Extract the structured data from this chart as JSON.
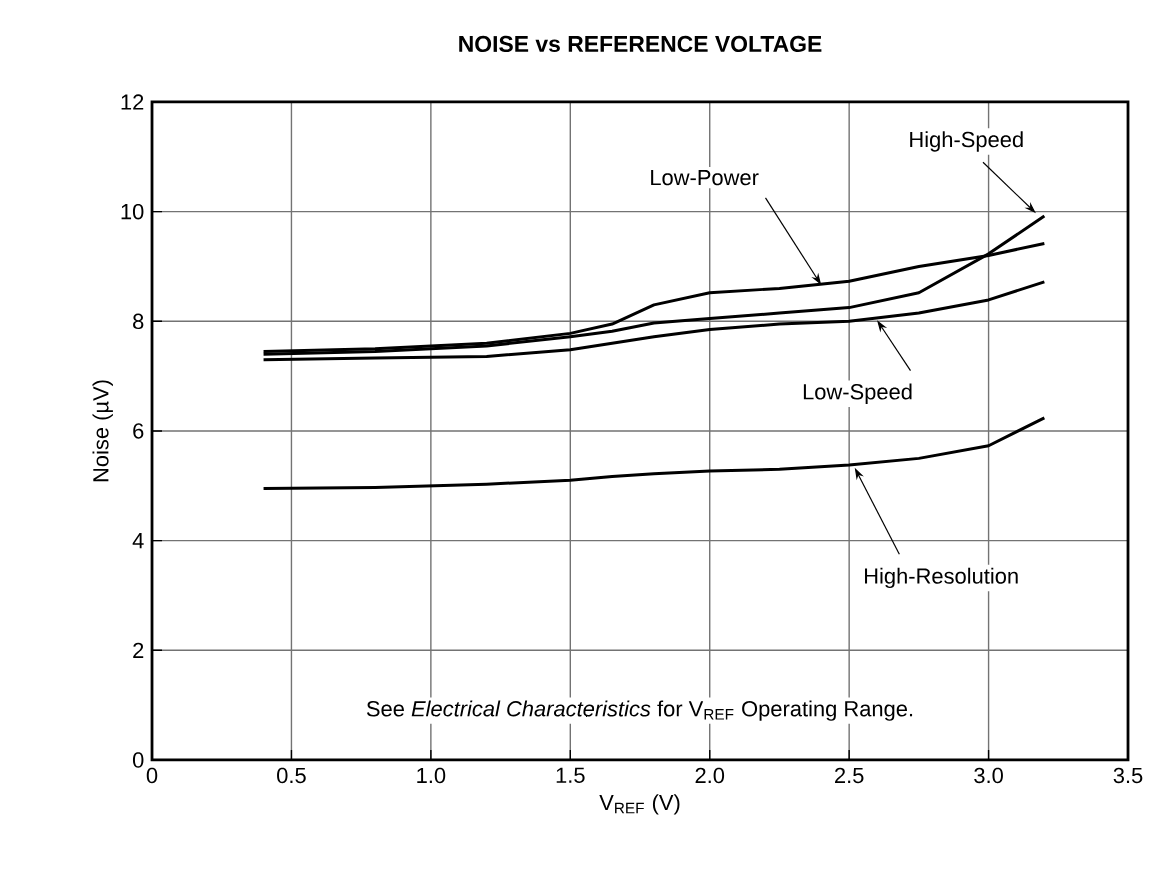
{
  "chart_data": {
    "type": "line",
    "title": "NOISE vs REFERENCE VOLTAGE",
    "xlabel": "V$_{REF}$ (V)",
    "ylabel": "Noise (µV)",
    "annotations": [
      "See *Electrical Characteristics* for V$_{REF}$ Operating Range."
    ],
    "x": [
      0.4,
      0.8,
      1.2,
      1.5,
      1.65,
      1.8,
      2.0,
      2.25,
      2.5,
      2.75,
      3.0,
      3.2
    ],
    "series": [
      {
        "name": "Low-Power",
        "color": "#000000",
        "values": [
          7.45,
          7.5,
          7.6,
          7.78,
          7.95,
          8.3,
          8.52,
          8.6,
          8.73,
          9.0,
          9.2,
          9.42
        ]
      },
      {
        "name": "High-Speed",
        "color": "#000000",
        "values": [
          7.4,
          7.45,
          7.55,
          7.72,
          7.82,
          7.97,
          8.05,
          8.15,
          8.25,
          8.52,
          9.23,
          9.92
        ]
      },
      {
        "name": "Low-Speed",
        "color": "#000000",
        "values": [
          7.3,
          7.33,
          7.36,
          7.48,
          7.6,
          7.72,
          7.85,
          7.95,
          8.0,
          8.15,
          8.39,
          8.72
        ]
      },
      {
        "name": "High-Resolution",
        "color": "#000000",
        "values": [
          4.95,
          4.97,
          5.03,
          5.1,
          5.17,
          5.22,
          5.27,
          5.3,
          5.38,
          5.5,
          5.73,
          6.24
        ]
      }
    ],
    "xlim": [
      0,
      3.5
    ],
    "ylim": [
      0,
      12
    ],
    "xticks": [
      0,
      {
        "value": 0.5,
        "label": "0.5"
      },
      {
        "value": 1.0,
        "label": "1.0"
      },
      {
        "value": 1.5,
        "label": "1.5"
      },
      {
        "value": 2.0,
        "label": "2.0"
      },
      {
        "value": 2.5,
        "label": "2.5"
      },
      {
        "value": 3.0,
        "label": "3.0"
      },
      {
        "value": 3.5,
        "label": "3.5"
      }
    ],
    "yticks": [
      0,
      2,
      4,
      6,
      8,
      10,
      12
    ],
    "grid": true,
    "marker": "none",
    "line_style": "solid"
  }
}
